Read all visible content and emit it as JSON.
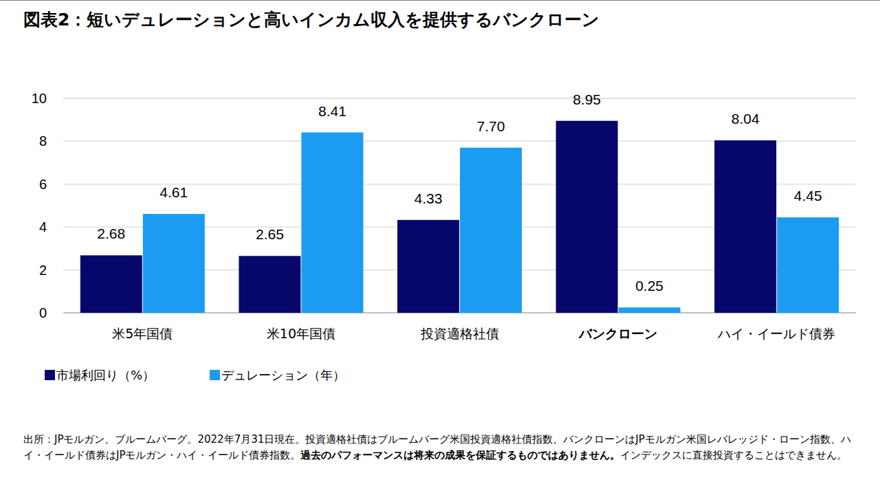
{
  "chart_data": {
    "type": "bar",
    "title": "図表2：短いデュレーションと高いインカム収入を提供するバンクローン",
    "categories": [
      "米5年国債",
      "米10年国債",
      "投資適格社債",
      "バンクローン",
      "ハイ・イールド債券"
    ],
    "series": [
      {
        "name": "市場利回り（%）",
        "color": "#07076b",
        "values": [
          2.68,
          2.65,
          4.33,
          8.95,
          8.04
        ]
      },
      {
        "name": "デュレーション（年）",
        "color": "#1b9cf2",
        "values": [
          4.61,
          8.41,
          7.7,
          0.25,
          4.45
        ],
        "value_labels": [
          "4.61",
          "8.41",
          "7.70",
          "0.25",
          "4.45"
        ]
      }
    ],
    "ylim": [
      0,
      10
    ],
    "yticks": [
      0,
      2,
      4,
      6,
      8,
      10
    ],
    "grid": true,
    "data_labels": true,
    "legend": "bottom-left",
    "footnote": [
      "出所：JPモルガン、ブルームバーグ。2022年7月31日現在。投資適格社債はブルームバーグ米国投資適格社債指数、バンクローンはJPモルガン米国レバレッジド・ローン指数、ハイ・イールド債券はJPモルガン・ハイ・イールド債券指数。",
      "過去のパフォーマンスは将来の成果を保証するものではありません。",
      "インデックスに直接投資することはできません。"
    ]
  }
}
